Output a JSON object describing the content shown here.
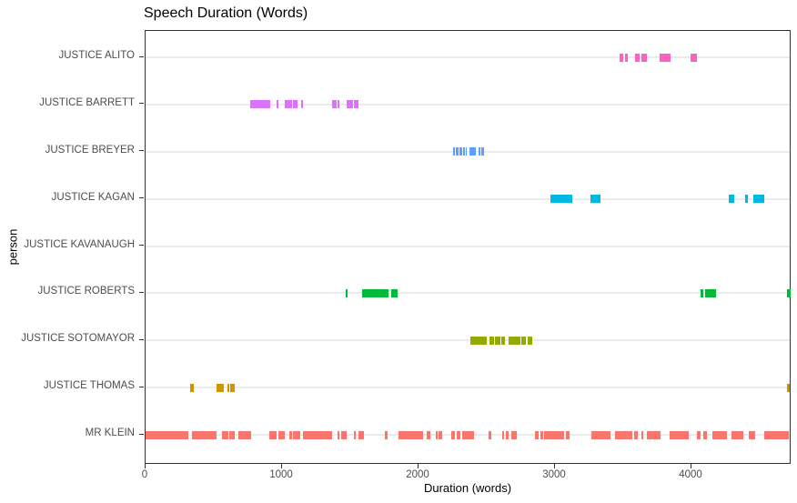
{
  "chart_data": {
    "type": "bar",
    "variant": "horizontal-interval-segments",
    "title": "Speech Duration (Words)",
    "xlabel": "Duration (words)",
    "ylabel": "person",
    "xlim": [
      0,
      4733
    ],
    "xticks": [
      0,
      1000,
      2000,
      3000,
      4000
    ],
    "grid": "horizontal-major-only",
    "legend": "none",
    "background": "#ffffff",
    "panel_border_color": "#333333",
    "gridline_color": "#EBEBEB",
    "tick_label_color": "#4D4D4D",
    "categories": [
      "JUSTICE ALITO",
      "JUSTICE BARRETT",
      "JUSTICE BREYER",
      "JUSTICE KAGAN",
      "JUSTICE KAVANAUGH",
      "JUSTICE ROBERTS",
      "JUSTICE SOTOMAYOR",
      "JUSTICE THOMAS",
      "MR KLEIN"
    ],
    "series": [
      {
        "name": "JUSTICE ALITO",
        "color": "#FF61C3",
        "segments": [
          [
            3473,
            3500
          ],
          [
            3513,
            3533
          ],
          [
            3587,
            3620
          ],
          [
            3633,
            3673
          ],
          [
            3767,
            3847
          ],
          [
            3993,
            4040
          ]
        ]
      },
      {
        "name": "JUSTICE BARRETT",
        "color": "#DB72FB",
        "segments": [
          [
            767,
            913
          ],
          [
            960,
            973
          ],
          [
            1020,
            1073
          ],
          [
            1080,
            1113
          ],
          [
            1140,
            1153
          ],
          [
            1367,
            1400
          ],
          [
            1407,
            1420
          ],
          [
            1473,
            1520
          ],
          [
            1527,
            1560
          ]
        ]
      },
      {
        "name": "JUSTICE BREYER",
        "color": "#619CFF",
        "segments": [
          [
            2253,
            2265
          ],
          [
            2271,
            2296
          ],
          [
            2298,
            2318
          ],
          [
            2325,
            2338
          ],
          [
            2345,
            2353
          ],
          [
            2373,
            2420
          ],
          [
            2440,
            2451
          ],
          [
            2458,
            2480
          ]
        ]
      },
      {
        "name": "JUSTICE KAGAN",
        "color": "#00B9E3",
        "segments": [
          [
            2967,
            3127
          ],
          [
            3260,
            3333
          ],
          [
            4273,
            4313
          ],
          [
            4393,
            4413
          ],
          [
            4453,
            4533
          ]
        ]
      },
      {
        "name": "JUSTICE KAVANAUGH",
        "color": "#00C19F",
        "segments": []
      },
      {
        "name": "JUSTICE ROBERTS",
        "color": "#00BA38",
        "segments": [
          [
            1467,
            1480
          ],
          [
            1587,
            1780
          ],
          [
            1800,
            1847
          ],
          [
            4067,
            4087
          ],
          [
            4100,
            4180
          ],
          [
            4700,
            4727
          ]
        ]
      },
      {
        "name": "JUSTICE SOTOMAYOR",
        "color": "#93AA00",
        "segments": [
          [
            2380,
            2500
          ],
          [
            2520,
            2553
          ],
          [
            2560,
            2600
          ],
          [
            2607,
            2633
          ],
          [
            2660,
            2747
          ],
          [
            2753,
            2787
          ],
          [
            2800,
            2833
          ]
        ]
      },
      {
        "name": "JUSTICE THOMAS",
        "color": "#D39200",
        "segments": [
          [
            327,
            353
          ],
          [
            520,
            573
          ],
          [
            600,
            607
          ],
          [
            620,
            653
          ],
          [
            4700,
            4720
          ]
        ]
      },
      {
        "name": "MR KLEIN",
        "color": "#F8766D",
        "segments": [
          [
            0,
            313
          ],
          [
            340,
            520
          ],
          [
            560,
            607
          ],
          [
            613,
            653
          ],
          [
            680,
            773
          ],
          [
            907,
            960
          ],
          [
            973,
            1020
          ],
          [
            1053,
            1073
          ],
          [
            1080,
            1133
          ],
          [
            1153,
            1367
          ],
          [
            1407,
            1420
          ],
          [
            1433,
            1473
          ],
          [
            1527,
            1533
          ],
          [
            1560,
            1600
          ],
          [
            1753,
            1773
          ],
          [
            1853,
            2033
          ],
          [
            2060,
            2087
          ],
          [
            2127,
            2140
          ],
          [
            2147,
            2173
          ],
          [
            2240,
            2267
          ],
          [
            2280,
            2307
          ],
          [
            2320,
            2407
          ],
          [
            2513,
            2533
          ],
          [
            2613,
            2627
          ],
          [
            2640,
            2660
          ],
          [
            2680,
            2720
          ],
          [
            2853,
            2880
          ],
          [
            2893,
            2913
          ],
          [
            2920,
            3067
          ],
          [
            3080,
            3107
          ],
          [
            3267,
            3407
          ],
          [
            3440,
            3565
          ],
          [
            3580,
            3607
          ],
          [
            3633,
            3647
          ],
          [
            3673,
            3773
          ],
          [
            3840,
            3980
          ],
          [
            4040,
            4067
          ],
          [
            4087,
            4113
          ],
          [
            4153,
            4260
          ],
          [
            4293,
            4380
          ],
          [
            4420,
            4467
          ],
          [
            4533,
            4713
          ]
        ]
      }
    ]
  }
}
